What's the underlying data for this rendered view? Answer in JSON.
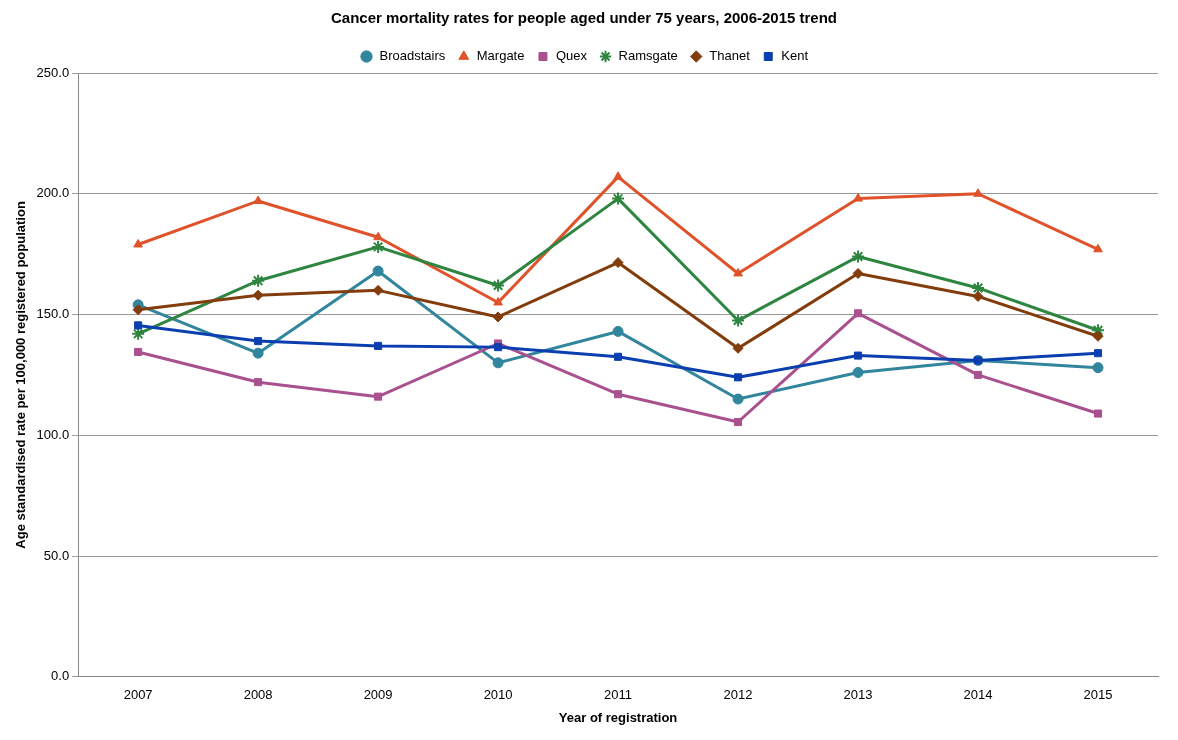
{
  "chart_data": {
    "type": "line",
    "title": "Cancer mortality rates for people aged under 75 years, 2006-2015 trend",
    "xlabel": "Year of registration",
    "ylabel": "Age standardised rate per 100,000 registered population",
    "categories": [
      "2007",
      "2008",
      "2009",
      "2010",
      "2011",
      "2012",
      "2013",
      "2014",
      "2015"
    ],
    "series": [
      {
        "name": "Broadstairs",
        "color": "#31859c",
        "marker": "circle",
        "values": [
          154,
          134,
          168,
          130,
          143,
          115,
          126,
          131,
          128
        ]
      },
      {
        "name": "Margate",
        "color": "#e0522a",
        "marker": "triangle",
        "values": [
          179,
          197,
          182,
          155,
          207,
          167,
          198,
          200,
          177
        ]
      },
      {
        "name": "Quex",
        "color": "#a9508f",
        "marker": "square",
        "values": [
          134.5,
          122,
          116,
          138,
          117,
          105.5,
          150.5,
          125,
          109
        ]
      },
      {
        "name": "Ramsgate",
        "color": "#2e8540",
        "marker": "cross",
        "values": [
          142,
          164,
          178,
          162,
          198,
          147.5,
          174,
          161,
          143.5
        ]
      },
      {
        "name": "Thanet",
        "color": "#833c0b",
        "marker": "diamond",
        "values": [
          152,
          158,
          160,
          149,
          171.5,
          136,
          167,
          157.5,
          141
        ]
      },
      {
        "name": "Kent",
        "color": "#0b3fb0",
        "marker": "square",
        "values": [
          145.5,
          139,
          137,
          136.5,
          132.5,
          124,
          133,
          131,
          134
        ]
      }
    ],
    "ylim": [
      0,
      250
    ],
    "yticks": [
      {
        "value": 0,
        "label": "0.0"
      },
      {
        "value": 50,
        "label": "50.0"
      },
      {
        "value": 100,
        "label": "100.0"
      },
      {
        "value": 150,
        "label": "150.0"
      },
      {
        "value": 200,
        "label": "200.0"
      },
      {
        "value": 250,
        "label": "250.0"
      }
    ],
    "grid": "y",
    "legend": "top",
    "line_style": "solid"
  }
}
